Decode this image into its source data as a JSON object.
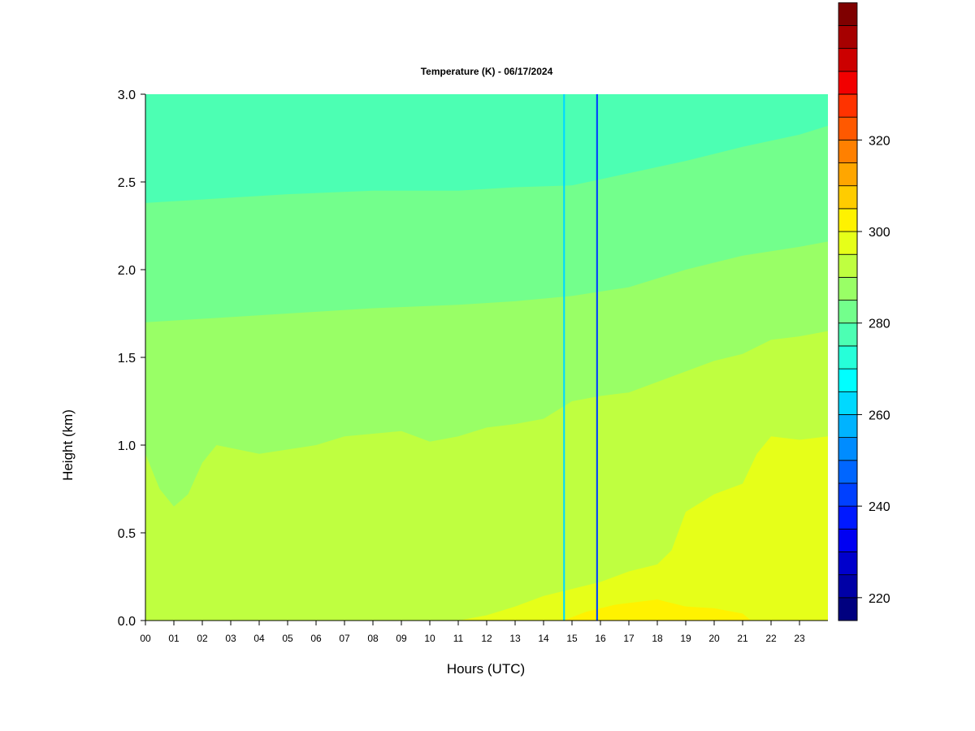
{
  "chart_data": {
    "type": "heatmap",
    "title": "Temperature (K) - 06/17/2024",
    "xlabel": "Hours (UTC)",
    "ylabel": "Height (km)",
    "xlim": [
      0,
      24
    ],
    "ylim": [
      0,
      3.0
    ],
    "x_ticks": [
      "00",
      "01",
      "02",
      "03",
      "04",
      "05",
      "06",
      "07",
      "08",
      "09",
      "10",
      "11",
      "12",
      "13",
      "14",
      "15",
      "16",
      "17",
      "18",
      "19",
      "20",
      "21",
      "22",
      "23"
    ],
    "y_ticks": [
      "0.0",
      "0.5",
      "1.0",
      "1.5",
      "2.0",
      "2.5",
      "3.0"
    ],
    "colorbar": {
      "min": 215,
      "max": 330,
      "step": 5,
      "tick_values": [
        220,
        240,
        260,
        280,
        300,
        320
      ],
      "tick_labels": [
        "220",
        "240",
        "260",
        "280",
        "300",
        "320"
      ],
      "colors": [
        "#00007F",
        "#0000A6",
        "#0000CC",
        "#0000F2",
        "#0019FF",
        "#0040FF",
        "#0066FF",
        "#008CFF",
        "#00B3FF",
        "#00D9FF",
        "#00FFFF",
        "#26FFD9",
        "#4CFFB3",
        "#73FF8C",
        "#99FF66",
        "#BFFF40",
        "#E6FF19",
        "#FFF200",
        "#FFCC00",
        "#FFA600",
        "#FF8000",
        "#FF5900",
        "#FF3300",
        "#F20000",
        "#CC0000",
        "#A60000",
        "#7F0000"
      ]
    },
    "layers": [
      {
        "upper_boundary_km": [
          [
            0,
            0
          ],
          [
            14,
            0
          ],
          [
            14.7,
            0
          ],
          [
            15.5,
            0.05
          ],
          [
            16.5,
            0.09
          ],
          [
            18,
            0.12
          ],
          [
            19,
            0.08
          ],
          [
            20,
            0.07
          ],
          [
            21,
            0.04
          ],
          [
            21.3,
            0
          ],
          [
            24,
            0
          ]
        ],
        "value_K": 302
      },
      {
        "upper_boundary_km": [
          [
            0,
            0
          ],
          [
            11,
            0
          ],
          [
            12,
            0.03
          ],
          [
            13,
            0.08
          ],
          [
            14,
            0.14
          ],
          [
            15,
            0.18
          ],
          [
            16,
            0.22
          ],
          [
            17,
            0.28
          ],
          [
            18,
            0.32
          ],
          [
            18.5,
            0.4
          ],
          [
            19,
            0.62
          ],
          [
            20,
            0.72
          ],
          [
            21,
            0.78
          ],
          [
            21.5,
            0.95
          ],
          [
            22,
            1.05
          ],
          [
            23,
            1.03
          ],
          [
            24,
            1.05
          ]
        ],
        "value_K": 297
      },
      {
        "upper_boundary_km": [
          [
            0,
            0.95
          ],
          [
            0.5,
            0.75
          ],
          [
            1,
            0.65
          ],
          [
            1.5,
            0.72
          ],
          [
            2,
            0.9
          ],
          [
            2.5,
            1.0
          ],
          [
            4,
            0.95
          ],
          [
            6,
            1.0
          ],
          [
            7,
            1.05
          ],
          [
            9,
            1.08
          ],
          [
            10,
            1.02
          ],
          [
            11,
            1.05
          ],
          [
            12,
            1.1
          ],
          [
            13,
            1.12
          ],
          [
            14,
            1.15
          ],
          [
            15,
            1.25
          ],
          [
            16,
            1.28
          ],
          [
            17,
            1.3
          ],
          [
            18,
            1.36
          ],
          [
            19,
            1.42
          ],
          [
            20,
            1.48
          ],
          [
            21,
            1.52
          ],
          [
            22,
            1.6
          ],
          [
            23,
            1.62
          ],
          [
            24,
            1.65
          ]
        ],
        "value_K": 292
      },
      {
        "upper_boundary_km": [
          [
            0,
            1.7
          ],
          [
            2,
            1.72
          ],
          [
            5,
            1.75
          ],
          [
            8,
            1.78
          ],
          [
            11,
            1.8
          ],
          [
            13,
            1.82
          ],
          [
            15,
            1.85
          ],
          [
            17,
            1.9
          ],
          [
            19,
            2.0
          ],
          [
            21,
            2.08
          ],
          [
            23,
            2.13
          ],
          [
            24,
            2.16
          ]
        ],
        "value_K": 287
      },
      {
        "upper_boundary_km": [
          [
            0,
            2.38
          ],
          [
            2,
            2.4
          ],
          [
            5,
            2.43
          ],
          [
            8,
            2.45
          ],
          [
            11,
            2.45
          ],
          [
            13,
            2.47
          ],
          [
            15,
            2.48
          ],
          [
            17,
            2.55
          ],
          [
            19,
            2.62
          ],
          [
            21,
            2.7
          ],
          [
            23,
            2.77
          ],
          [
            24,
            2.82
          ]
        ],
        "value_K": 282
      },
      {
        "upper_boundary_km": [
          [
            0,
            3.0
          ],
          [
            24,
            3.0
          ]
        ],
        "value_K": 277
      }
    ],
    "anomaly_columns": [
      {
        "hour": 14.72,
        "width_h": 0.06,
        "value_K": 262
      },
      {
        "hour": 15.88,
        "width_h": 0.06,
        "value_K": 240
      }
    ]
  }
}
